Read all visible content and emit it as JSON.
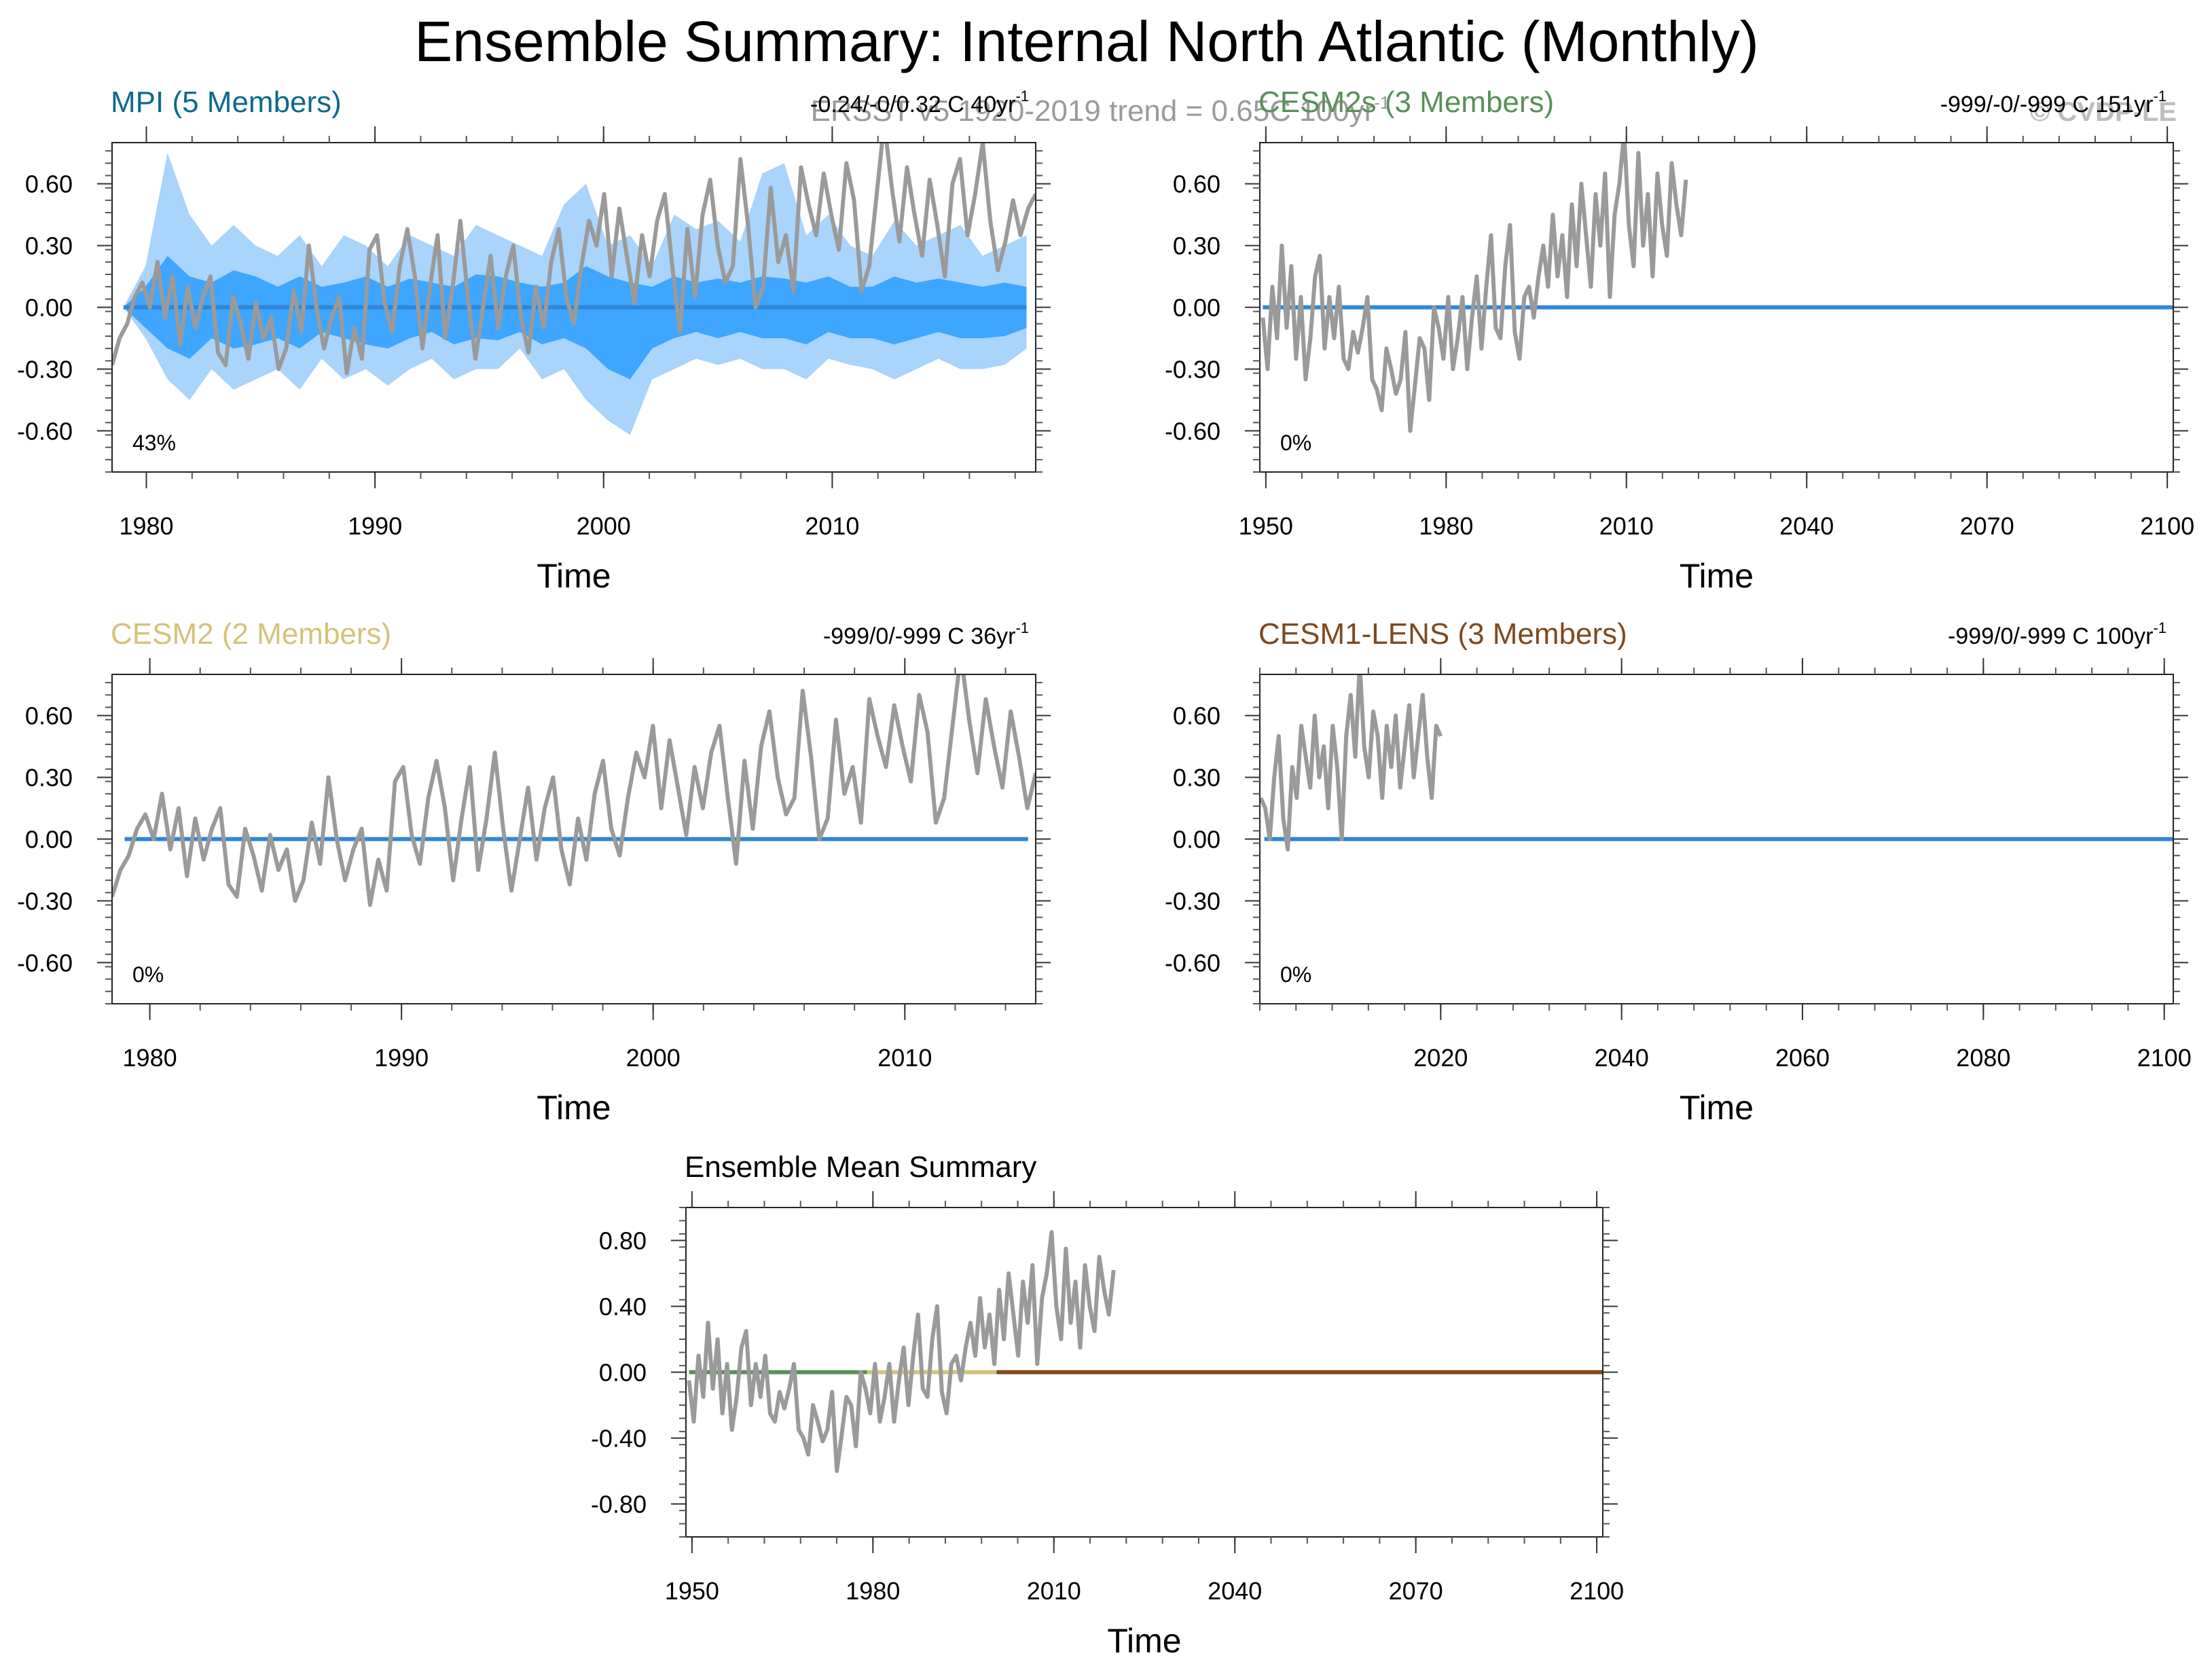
{
  "figure": {
    "title": "Ensemble Summary: Internal North Atlantic (Monthly)",
    "obs_note": "ERSST v5 1920-2019 trend = 0.65C 100yr",
    "obs_note_sup": "-1",
    "copyright": "© CVDP-LE"
  },
  "colors": {
    "obs_line": "#9a9a9a",
    "zero_line": "#2f86d6",
    "ens_outer": "#a9d4fb",
    "ens_inner": "#3ea6ff",
    "mpi": "#0d6a8c",
    "cesm2s": "#5a8f5a",
    "cesm2": "#d4c379",
    "cesm1": "#7d4a1e",
    "mean_title": "#000000"
  },
  "chart_data": [
    {
      "id": "mpi",
      "type": "area",
      "title": "MPI (5 Members)",
      "trend": "-0.24/-0/0.32 C 40yr",
      "trend_sup": "-1",
      "xlabel": "Time",
      "percent": "43%",
      "xlim": [
        1978.5,
        2018.9
      ],
      "ylim": [
        -0.8,
        0.8
      ],
      "xticks": [
        1980,
        1990,
        2000,
        2010
      ],
      "yticks": [
        -0.6,
        -0.3,
        0.0,
        0.3,
        0.6
      ],
      "ytick_labels": [
        "-0.60",
        "-0.30",
        "0.00",
        "0.30",
        "0.60"
      ],
      "obs_start": 1978.5,
      "zero_range": [
        1979,
        2018.5
      ],
      "spread": true,
      "obs": [
        -0.28,
        -0.15,
        -0.08,
        0.05,
        0.12,
        0.0,
        0.22,
        -0.05,
        0.15,
        -0.18,
        0.1,
        -0.1,
        0.05,
        0.15,
        -0.22,
        -0.28,
        0.05,
        -0.08,
        -0.25,
        0.02,
        -0.15,
        -0.05,
        -0.3,
        -0.2,
        0.08,
        -0.12,
        0.3,
        0.0,
        -0.2,
        -0.05,
        0.05,
        -0.32,
        -0.1,
        -0.25,
        0.28,
        0.35,
        0.02,
        -0.12,
        0.2,
        0.38,
        0.15,
        -0.2,
        0.1,
        0.35,
        -0.15,
        0.1,
        0.42,
        0.05,
        -0.25,
        0.0,
        0.25,
        -0.1,
        0.15,
        0.3,
        -0.05,
        -0.22,
        0.1,
        -0.1,
        0.22,
        0.38,
        0.05,
        -0.08,
        0.2,
        0.42,
        0.3,
        0.55,
        0.15,
        0.48,
        0.25,
        0.02,
        0.35,
        0.15,
        0.42,
        0.55,
        0.2,
        -0.12,
        0.38,
        0.05,
        0.45,
        0.62,
        0.3,
        0.12,
        0.2,
        0.72,
        0.4,
        0.0,
        0.1,
        0.58,
        0.22,
        0.35,
        0.08,
        0.68,
        0.5,
        0.35,
        0.65,
        0.45,
        0.28,
        0.7,
        0.52,
        0.08,
        0.2,
        0.55,
        0.9,
        0.58,
        0.32,
        0.68,
        0.45,
        0.25,
        0.62,
        0.4,
        0.15,
        0.6,
        0.72,
        0.35,
        0.55,
        0.8,
        0.42,
        0.18,
        0.32,
        0.52,
        0.35,
        0.48,
        0.55
      ],
      "spread_outer_upper": [
        0.0,
        0.2,
        0.75,
        0.45,
        0.3,
        0.4,
        0.3,
        0.25,
        0.35,
        0.2,
        0.35,
        0.3,
        0.2,
        0.35,
        0.3,
        0.25,
        0.4,
        0.35,
        0.3,
        0.25,
        0.5,
        0.6,
        0.3,
        0.35,
        0.2,
        0.45,
        0.38,
        0.42,
        0.32,
        0.65,
        0.7,
        0.35,
        0.45,
        0.3,
        0.25,
        0.42,
        0.3,
        0.35,
        0.4,
        0.25,
        0.3,
        0.35
      ],
      "spread_outer_lower": [
        0.0,
        -0.15,
        -0.35,
        -0.45,
        -0.3,
        -0.4,
        -0.35,
        -0.3,
        -0.4,
        -0.25,
        -0.35,
        -0.3,
        -0.38,
        -0.3,
        -0.25,
        -0.35,
        -0.3,
        -0.3,
        -0.2,
        -0.35,
        -0.3,
        -0.45,
        -0.55,
        -0.62,
        -0.35,
        -0.3,
        -0.25,
        -0.28,
        -0.25,
        -0.3,
        -0.3,
        -0.35,
        -0.25,
        -0.28,
        -0.3,
        -0.35,
        -0.3,
        -0.25,
        -0.3,
        -0.3,
        -0.28,
        -0.2
      ],
      "spread_inner_upper": [
        0.0,
        0.1,
        0.25,
        0.15,
        0.12,
        0.18,
        0.15,
        0.1,
        0.15,
        0.1,
        0.12,
        0.15,
        0.1,
        0.14,
        0.12,
        0.1,
        0.16,
        0.15,
        0.12,
        0.1,
        0.12,
        0.2,
        0.15,
        0.12,
        0.1,
        0.15,
        0.12,
        0.14,
        0.12,
        0.15,
        0.14,
        0.12,
        0.15,
        0.1,
        0.1,
        0.15,
        0.12,
        0.14,
        0.12,
        0.1,
        0.12,
        0.1
      ],
      "spread_inner_lower": [
        0.0,
        -0.1,
        -0.2,
        -0.25,
        -0.15,
        -0.2,
        -0.18,
        -0.15,
        -0.2,
        -0.12,
        -0.15,
        -0.18,
        -0.2,
        -0.15,
        -0.12,
        -0.18,
        -0.15,
        -0.16,
        -0.12,
        -0.18,
        -0.15,
        -0.2,
        -0.3,
        -0.35,
        -0.2,
        -0.15,
        -0.12,
        -0.15,
        -0.12,
        -0.15,
        -0.15,
        -0.18,
        -0.12,
        -0.15,
        -0.15,
        -0.18,
        -0.15,
        -0.12,
        -0.15,
        -0.15,
        -0.14,
        -0.1
      ]
    },
    {
      "id": "cesm2s",
      "type": "line",
      "title": "CESM2s (3 Members)",
      "trend": "-999/-0/-999 C 151yr",
      "trend_sup": "-1",
      "xlabel": "Time",
      "percent": "0%",
      "xlim": [
        1949,
        2101
      ],
      "ylim": [
        -0.8,
        0.8
      ],
      "xticks": [
        1950,
        1980,
        2010,
        2040,
        2070,
        2100
      ],
      "yticks": [
        -0.6,
        -0.3,
        0.0,
        0.3,
        0.6
      ],
      "ytick_labels": [
        "-0.60",
        "-0.30",
        "0.00",
        "0.30",
        "0.60"
      ],
      "obs_start": 1949.5,
      "obs_end": 2019.9,
      "zero_range": [
        1949.5,
        2101
      ],
      "spread": false,
      "obs": [
        -0.05,
        -0.3,
        0.1,
        -0.15,
        0.3,
        -0.1,
        0.2,
        -0.25,
        0.05,
        -0.35,
        -0.15,
        0.15,
        0.25,
        -0.2,
        0.05,
        -0.15,
        0.1,
        -0.25,
        -0.3,
        -0.12,
        -0.22,
        -0.1,
        0.05,
        -0.35,
        -0.4,
        -0.5,
        -0.2,
        -0.3,
        -0.42,
        -0.35,
        -0.12,
        -0.6,
        -0.38,
        -0.15,
        -0.2,
        -0.45,
        0.0,
        -0.1,
        -0.25,
        0.05,
        -0.3,
        -0.15,
        0.05,
        -0.3,
        -0.05,
        0.15,
        -0.2,
        0.1,
        0.35,
        -0.1,
        -0.15,
        0.2,
        0.4,
        -0.12,
        -0.25,
        0.05,
        0.1,
        -0.05,
        0.15,
        0.3,
        0.1,
        0.45,
        0.15,
        0.35,
        0.05,
        0.5,
        0.2,
        0.6,
        0.35,
        0.1,
        0.55,
        0.3,
        0.65,
        0.05,
        0.45,
        0.6,
        0.85,
        0.4,
        0.2,
        0.75,
        0.3,
        0.55,
        0.15,
        0.65,
        0.4,
        0.25,
        0.7,
        0.5,
        0.35,
        0.62
      ]
    },
    {
      "id": "cesm2",
      "type": "line",
      "title": "CESM2 (2 Members)",
      "trend": "-999/0/-999 C 36yr",
      "trend_sup": "-1",
      "xlabel": "Time",
      "percent": "0%",
      "xlim": [
        1978.5,
        2015.2
      ],
      "ylim": [
        -0.8,
        0.8
      ],
      "xticks": [
        1980,
        1990,
        2000,
        2010
      ],
      "yticks": [
        -0.6,
        -0.3,
        0.0,
        0.3,
        0.6
      ],
      "ytick_labels": [
        "-0.60",
        "-0.30",
        "0.00",
        "0.30",
        "0.60"
      ],
      "obs_start": 1978.5,
      "zero_range": [
        1979,
        2014.9
      ],
      "spread": false,
      "obs": [
        -0.28,
        -0.15,
        -0.08,
        0.05,
        0.12,
        0.0,
        0.22,
        -0.05,
        0.15,
        -0.18,
        0.1,
        -0.1,
        0.05,
        0.15,
        -0.22,
        -0.28,
        0.05,
        -0.08,
        -0.25,
        0.02,
        -0.15,
        -0.05,
        -0.3,
        -0.2,
        0.08,
        -0.12,
        0.3,
        0.0,
        -0.2,
        -0.05,
        0.05,
        -0.32,
        -0.1,
        -0.25,
        0.28,
        0.35,
        0.02,
        -0.12,
        0.2,
        0.38,
        0.15,
        -0.2,
        0.1,
        0.35,
        -0.15,
        0.1,
        0.42,
        0.05,
        -0.25,
        0.0,
        0.25,
        -0.1,
        0.15,
        0.3,
        -0.05,
        -0.22,
        0.1,
        -0.1,
        0.22,
        0.38,
        0.05,
        -0.08,
        0.2,
        0.42,
        0.3,
        0.55,
        0.15,
        0.48,
        0.25,
        0.02,
        0.35,
        0.15,
        0.42,
        0.55,
        0.2,
        -0.12,
        0.38,
        0.05,
        0.45,
        0.62,
        0.3,
        0.12,
        0.2,
        0.72,
        0.4,
        0.0,
        0.1,
        0.58,
        0.22,
        0.35,
        0.08,
        0.68,
        0.5,
        0.35,
        0.65,
        0.45,
        0.28,
        0.7,
        0.52,
        0.08,
        0.2,
        0.55,
        0.9,
        0.58,
        0.32,
        0.68,
        0.45,
        0.25,
        0.62,
        0.4,
        0.15,
        0.32
      ]
    },
    {
      "id": "cesm1",
      "type": "line",
      "title": "CESM1-LENS (3 Members)",
      "trend": "-999/0/-999 C 100yr",
      "trend_sup": "-1",
      "xlabel": "Time",
      "percent": "0%",
      "xlim": [
        2000,
        2101
      ],
      "ylim": [
        -0.8,
        0.8
      ],
      "xticks": [
        2020,
        2040,
        2060,
        2080,
        2100
      ],
      "yticks": [
        -0.6,
        -0.3,
        0.0,
        0.3,
        0.6
      ],
      "ytick_labels": [
        "-0.60",
        "-0.30",
        "0.00",
        "0.30",
        "0.60"
      ],
      "obs_start": 2000.1,
      "obs_end": 2020.0,
      "zero_range": [
        2000.5,
        2101
      ],
      "spread": false,
      "obs": [
        0.2,
        0.15,
        0.0,
        0.3,
        0.5,
        0.1,
        -0.05,
        0.35,
        0.2,
        0.55,
        0.4,
        0.25,
        0.6,
        0.3,
        0.45,
        0.15,
        0.55,
        0.35,
        0.0,
        0.5,
        0.7,
        0.4,
        0.85,
        0.45,
        0.3,
        0.62,
        0.5,
        0.2,
        0.55,
        0.35,
        0.6,
        0.25,
        0.45,
        0.65,
        0.3,
        0.5,
        0.7,
        0.4,
        0.2,
        0.55,
        0.5
      ]
    },
    {
      "id": "mean",
      "type": "line",
      "title": "Ensemble Mean Summary",
      "xlabel": "Time",
      "xlim": [
        1949,
        2101
      ],
      "ylim": [
        -1.0,
        1.0
      ],
      "xticks": [
        1950,
        1980,
        2010,
        2040,
        2070,
        2100
      ],
      "yticks": [
        -0.8,
        -0.4,
        0.0,
        0.4,
        0.8
      ],
      "ytick_labels": [
        "-0.80",
        "-0.40",
        "0.00",
        "0.40",
        "0.80"
      ],
      "obs_start": 1949.5,
      "obs_end": 2019.9,
      "spread": false,
      "mean_lines": [
        {
          "name": "CESM2s",
          "range": [
            1949.5,
            2000
          ],
          "color": "#5a8f5a"
        },
        {
          "name": "CESM2",
          "range": [
            1979,
            2001
          ],
          "color": "#d4c379"
        },
        {
          "name": "CESM1-LENS",
          "range": [
            2000.5,
            2101
          ],
          "color": "#7d4a1e"
        }
      ],
      "obs": [
        -0.05,
        -0.3,
        0.1,
        -0.15,
        0.3,
        -0.1,
        0.2,
        -0.25,
        0.05,
        -0.35,
        -0.15,
        0.15,
        0.25,
        -0.2,
        0.05,
        -0.15,
        0.1,
        -0.25,
        -0.3,
        -0.12,
        -0.22,
        -0.1,
        0.05,
        -0.35,
        -0.4,
        -0.5,
        -0.2,
        -0.3,
        -0.42,
        -0.35,
        -0.12,
        -0.6,
        -0.38,
        -0.15,
        -0.2,
        -0.45,
        0.0,
        -0.1,
        -0.25,
        0.05,
        -0.3,
        -0.15,
        0.05,
        -0.3,
        -0.05,
        0.15,
        -0.2,
        0.1,
        0.35,
        -0.1,
        -0.15,
        0.2,
        0.4,
        -0.12,
        -0.25,
        0.05,
        0.1,
        -0.05,
        0.15,
        0.3,
        0.1,
        0.45,
        0.15,
        0.35,
        0.05,
        0.5,
        0.2,
        0.6,
        0.35,
        0.1,
        0.55,
        0.3,
        0.65,
        0.05,
        0.45,
        0.6,
        0.85,
        0.4,
        0.2,
        0.75,
        0.3,
        0.55,
        0.15,
        0.65,
        0.4,
        0.25,
        0.7,
        0.5,
        0.35,
        0.62
      ]
    }
  ]
}
